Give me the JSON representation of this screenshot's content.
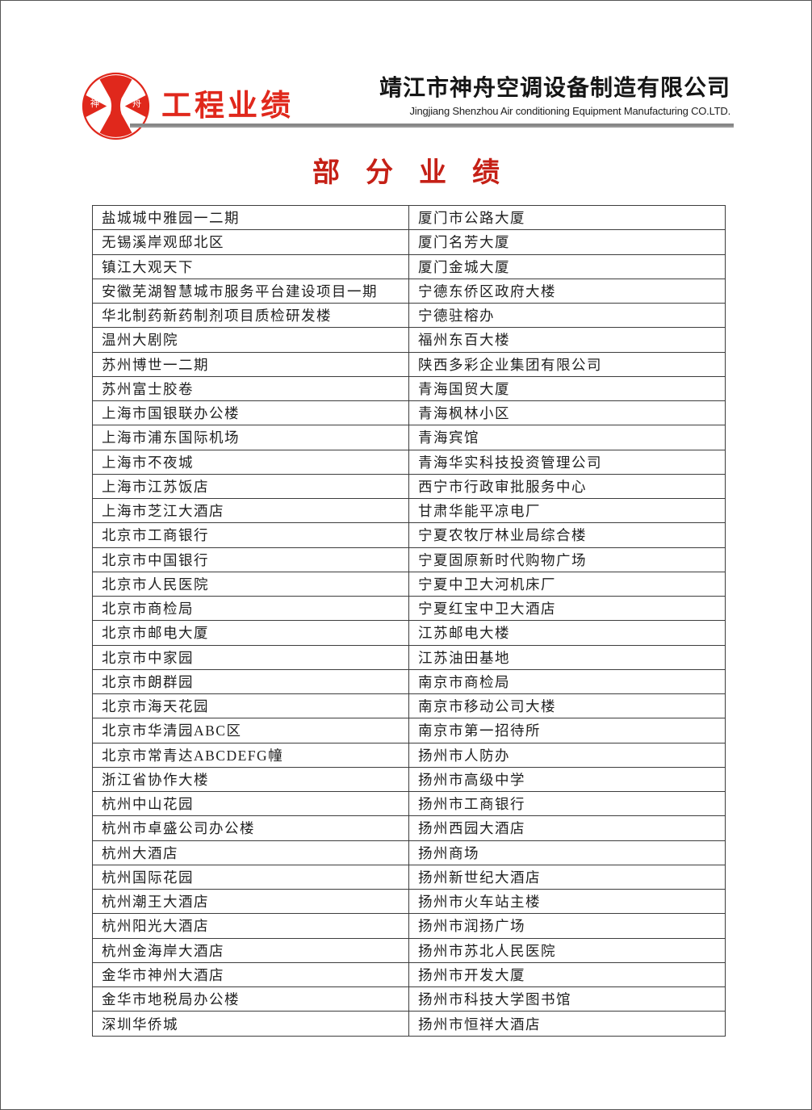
{
  "header": {
    "logo": {
      "char_left": "神",
      "char_right": "舟"
    },
    "logo_text": "工程业绩",
    "company_name_cn": "靖江市神舟空调设备制造有限公司",
    "company_name_en": "Jingjiang Shenzhou Air conditioning Equipment Manufacturing CO.LTD."
  },
  "title": "部分业绩",
  "colors": {
    "brand_red": "#e0281c",
    "title_red": "#c52016",
    "rule_gray": "#8a8a8a",
    "table_border": "#3d3d3d",
    "text": "#1f1f1f"
  },
  "table": {
    "rows": [
      [
        "盐城城中雅园一二期",
        "厦门市公路大厦"
      ],
      [
        "无锡溪岸观邸北区",
        "厦门名芳大厦"
      ],
      [
        "镇江大观天下",
        "厦门金城大厦"
      ],
      [
        "安徽芜湖智慧城市服务平台建设项目一期",
        "宁德东侨区政府大楼"
      ],
      [
        "华北制药新药制剂项目质检研发楼",
        "宁德驻榕办"
      ],
      [
        "温州大剧院",
        "福州东百大楼"
      ],
      [
        "苏州博世一二期",
        "陕西多彩企业集团有限公司"
      ],
      [
        "苏州富士胶卷",
        "青海国贸大厦"
      ],
      [
        "上海市国银联办公楼",
        "青海枫林小区"
      ],
      [
        "上海市浦东国际机场",
        "青海宾馆"
      ],
      [
        "上海市不夜城",
        "青海华实科技投资管理公司"
      ],
      [
        "上海市江苏饭店",
        "西宁市行政审批服务中心"
      ],
      [
        "上海市芝江大酒店",
        "甘肃华能平凉电厂"
      ],
      [
        "北京市工商银行",
        "宁夏农牧厅林业局综合楼"
      ],
      [
        "北京市中国银行",
        "宁夏固原新时代购物广场"
      ],
      [
        "北京市人民医院",
        "宁夏中卫大河机床厂"
      ],
      [
        "北京市商检局",
        "宁夏红宝中卫大酒店"
      ],
      [
        "北京市邮电大厦",
        "江苏邮电大楼"
      ],
      [
        "北京市中家园",
        "江苏油田基地"
      ],
      [
        "北京市朗群园",
        "南京市商检局"
      ],
      [
        "北京市海天花园",
        "南京市移动公司大楼"
      ],
      [
        "北京市华清园ABC区",
        "南京市第一招待所"
      ],
      [
        "北京市常青达ABCDEFG幢",
        "扬州市人防办"
      ],
      [
        "浙江省协作大楼",
        "扬州市高级中学"
      ],
      [
        "杭州中山花园",
        "扬州市工商银行"
      ],
      [
        "杭州市卓盛公司办公楼",
        "扬州西园大酒店"
      ],
      [
        "杭州大酒店",
        "扬州商场"
      ],
      [
        "杭州国际花园",
        "扬州新世纪大酒店"
      ],
      [
        "杭州潮王大酒店",
        "扬州市火车站主楼"
      ],
      [
        "杭州阳光大酒店",
        "扬州市润扬广场"
      ],
      [
        "杭州金海岸大酒店",
        "扬州市苏北人民医院"
      ],
      [
        "金华市神州大酒店",
        "扬州市开发大厦"
      ],
      [
        "金华市地税局办公楼",
        "扬州市科技大学图书馆"
      ],
      [
        "深圳华侨城",
        "扬州市恒祥大酒店"
      ]
    ]
  }
}
